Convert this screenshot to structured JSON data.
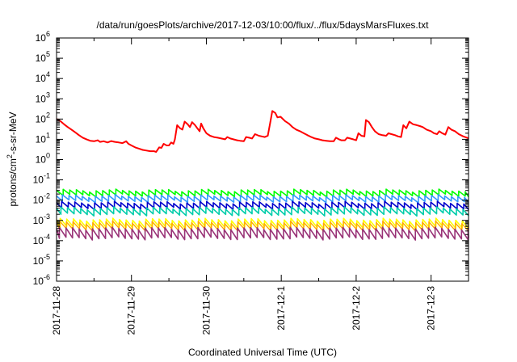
{
  "chart_data": {
    "type": "line",
    "title": "/data/run/goesPlots/archive/2017-12-03/10:00/flux/../flux/5daysMarsFluxes.txt",
    "xlabel": "Coordinated Universal Time (UTC)",
    "ylabel_parts": [
      "protons/cm",
      "2",
      "-s-sr-MeV"
    ],
    "y_scale": "log",
    "ylim_exp": [
      -6,
      6
    ],
    "y_ticks": [
      {
        "base": "10",
        "exp": "-6",
        "e": -6
      },
      {
        "base": "10",
        "exp": "-5",
        "e": -5
      },
      {
        "base": "10",
        "exp": "-4",
        "e": -4
      },
      {
        "base": "10",
        "exp": "-3",
        "e": -3
      },
      {
        "base": "10",
        "exp": "-2",
        "e": -2
      },
      {
        "base": "10",
        "exp": "-1",
        "e": -1
      },
      {
        "base": "10",
        "exp": "0",
        "e": 0
      },
      {
        "base": "10",
        "exp": "1",
        "e": 1
      },
      {
        "base": "10",
        "exp": "2",
        "e": 2
      },
      {
        "base": "10",
        "exp": "3",
        "e": 3
      },
      {
        "base": "10",
        "exp": "4",
        "e": 4
      },
      {
        "base": "10",
        "exp": "5",
        "e": 5
      },
      {
        "base": "10",
        "exp": "6",
        "e": 6
      }
    ],
    "x_range_days": [
      0,
      5.5
    ],
    "x_ticks": [
      {
        "label": "2017-11-28",
        "day": 0
      },
      {
        "label": "2017-11-29",
        "day": 1
      },
      {
        "label": "2017-11-30",
        "day": 2
      },
      {
        "label": "2017-12-1",
        "day": 3
      },
      {
        "label": "2017-12-2",
        "day": 4
      },
      {
        "label": "2017-12-3",
        "day": 5
      }
    ],
    "grid": false,
    "legend": "none",
    "series": [
      {
        "color": "#ff0000",
        "width": 2,
        "points": [
          [
            0.0,
            100
          ],
          [
            0.05,
            80
          ],
          [
            0.1,
            55
          ],
          [
            0.15,
            40
          ],
          [
            0.2,
            30
          ],
          [
            0.25,
            22
          ],
          [
            0.3,
            16
          ],
          [
            0.35,
            12
          ],
          [
            0.4,
            10
          ],
          [
            0.45,
            8.5
          ],
          [
            0.5,
            8
          ],
          [
            0.55,
            9
          ],
          [
            0.58,
            7.5
          ],
          [
            0.63,
            8
          ],
          [
            0.68,
            7
          ],
          [
            0.73,
            8.2
          ],
          [
            0.78,
            7.5
          ],
          [
            0.83,
            7
          ],
          [
            0.88,
            6.5
          ],
          [
            0.93,
            8
          ],
          [
            0.96,
            6
          ],
          [
            1.0,
            5
          ],
          [
            1.05,
            4
          ],
          [
            1.1,
            3.5
          ],
          [
            1.15,
            3
          ],
          [
            1.2,
            2.8
          ],
          [
            1.25,
            2.6
          ],
          [
            1.3,
            2.6
          ],
          [
            1.33,
            2.4
          ],
          [
            1.37,
            4
          ],
          [
            1.4,
            3.8
          ],
          [
            1.43,
            6
          ],
          [
            1.47,
            5
          ],
          [
            1.5,
            5
          ],
          [
            1.53,
            7
          ],
          [
            1.56,
            6
          ],
          [
            1.58,
            10
          ],
          [
            1.61,
            50
          ],
          [
            1.65,
            35
          ],
          [
            1.68,
            30
          ],
          [
            1.71,
            75
          ],
          [
            1.75,
            55
          ],
          [
            1.78,
            40
          ],
          [
            1.81,
            70
          ],
          [
            1.85,
            50
          ],
          [
            1.88,
            35
          ],
          [
            1.91,
            25
          ],
          [
            1.93,
            60
          ],
          [
            1.96,
            35
          ],
          [
            2.0,
            20
          ],
          [
            2.05,
            15
          ],
          [
            2.1,
            13
          ],
          [
            2.15,
            12
          ],
          [
            2.2,
            11
          ],
          [
            2.25,
            10
          ],
          [
            2.28,
            13
          ],
          [
            2.32,
            11
          ],
          [
            2.36,
            10
          ],
          [
            2.41,
            9
          ],
          [
            2.45,
            8.5
          ],
          [
            2.5,
            8
          ],
          [
            2.53,
            13
          ],
          [
            2.57,
            12
          ],
          [
            2.61,
            11
          ],
          [
            2.65,
            18
          ],
          [
            2.7,
            15
          ],
          [
            2.74,
            14
          ],
          [
            2.78,
            13
          ],
          [
            2.82,
            15
          ],
          [
            2.85,
            60
          ],
          [
            2.88,
            250
          ],
          [
            2.92,
            200
          ],
          [
            2.95,
            120
          ],
          [
            2.99,
            130
          ],
          [
            3.05,
            80
          ],
          [
            3.1,
            60
          ],
          [
            3.15,
            40
          ],
          [
            3.2,
            30
          ],
          [
            3.25,
            25
          ],
          [
            3.3,
            20
          ],
          [
            3.35,
            16
          ],
          [
            3.4,
            13
          ],
          [
            3.45,
            11
          ],
          [
            3.5,
            10
          ],
          [
            3.55,
            9
          ],
          [
            3.6,
            8.5
          ],
          [
            3.65,
            8
          ],
          [
            3.7,
            8
          ],
          [
            3.73,
            12
          ],
          [
            3.77,
            10
          ],
          [
            3.8,
            9
          ],
          [
            3.85,
            9
          ],
          [
            3.88,
            12
          ],
          [
            3.92,
            11
          ],
          [
            3.96,
            10
          ],
          [
            4.0,
            9
          ],
          [
            4.03,
            20
          ],
          [
            4.07,
            15
          ],
          [
            4.11,
            14
          ],
          [
            4.13,
            90
          ],
          [
            4.17,
            70
          ],
          [
            4.21,
            40
          ],
          [
            4.25,
            25
          ],
          [
            4.3,
            18
          ],
          [
            4.35,
            16
          ],
          [
            4.4,
            15
          ],
          [
            4.43,
            20
          ],
          [
            4.47,
            18
          ],
          [
            4.52,
            16
          ],
          [
            4.56,
            14
          ],
          [
            4.6,
            13
          ],
          [
            4.63,
            50
          ],
          [
            4.67,
            35
          ],
          [
            4.71,
            75
          ],
          [
            4.76,
            55
          ],
          [
            4.81,
            50
          ],
          [
            4.85,
            45
          ],
          [
            4.89,
            40
          ],
          [
            4.94,
            30
          ],
          [
            5.0,
            25
          ],
          [
            5.04,
            20
          ],
          [
            5.08,
            18
          ],
          [
            5.11,
            25
          ],
          [
            5.15,
            20
          ],
          [
            5.19,
            17
          ],
          [
            5.23,
            40
          ],
          [
            5.27,
            30
          ],
          [
            5.32,
            25
          ],
          [
            5.37,
            18
          ],
          [
            5.43,
            14
          ],
          [
            5.48,
            12
          ],
          [
            5.5,
            11
          ]
        ]
      },
      {
        "color": "#00ff00",
        "width": 1.6,
        "sawtooth": {
          "low": 0.017,
          "high": 0.03,
          "period": 0.088,
          "phase": 0.0
        }
      },
      {
        "color": "#3399ff",
        "width": 1.6,
        "sawtooth": {
          "low": 0.009,
          "high": 0.016,
          "period": 0.088,
          "phase": 0.01
        }
      },
      {
        "color": "#0000cc",
        "width": 1.6,
        "sawtooth": {
          "low": 0.004,
          "high": 0.0075,
          "period": 0.088,
          "phase": 0.02
        }
      },
      {
        "color": "#00ccaa",
        "width": 1.6,
        "sawtooth": {
          "low": 0.002,
          "high": 0.004,
          "period": 0.088,
          "phase": 0.03
        }
      },
      {
        "color": "#ffff00",
        "width": 1.6,
        "sawtooth": {
          "low": 0.00045,
          "high": 0.0011,
          "period": 0.088,
          "phase": 0.04
        }
      },
      {
        "color": "#ffaa00",
        "width": 1.4,
        "sawtooth": {
          "low": 0.00035,
          "high": 0.0008,
          "period": 0.088,
          "phase": 0.045
        }
      },
      {
        "color": "#993377",
        "width": 1.6,
        "sawtooth": {
          "low": 0.00013,
          "high": 0.0004,
          "period": 0.088,
          "phase": 0.05
        }
      }
    ]
  }
}
